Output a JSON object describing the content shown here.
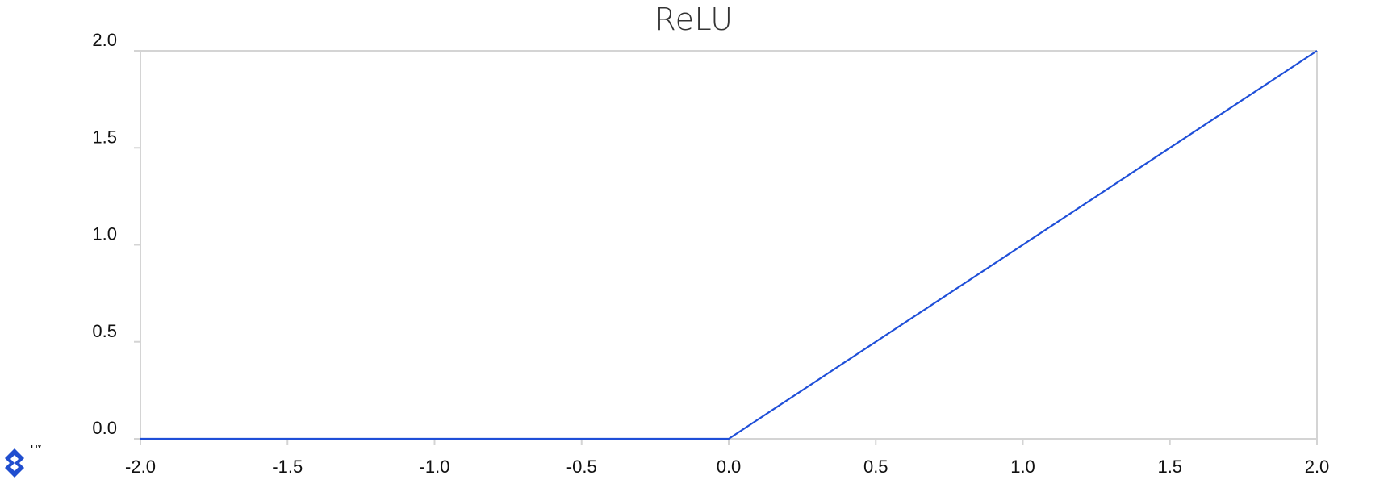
{
  "chart_data": {
    "type": "line",
    "title": "ReLU",
    "xlabel": "",
    "ylabel": "",
    "xlim": [
      -2.0,
      2.0
    ],
    "ylim": [
      0.0,
      2.0
    ],
    "x_ticks": [
      "-2.0",
      "-1.5",
      "-1.0",
      "-0.5",
      "0.0",
      "0.5",
      "1.0",
      "1.5",
      "2.0"
    ],
    "y_ticks": [
      "0.0",
      "0.5",
      "1.0",
      "1.5",
      "2.0"
    ],
    "series": [
      {
        "x": [
          -2.0,
          0.0,
          2.0
        ],
        "y": [
          0.0,
          0.0,
          2.0
        ],
        "color": "#1f4fd8"
      }
    ],
    "grid": false,
    "axis_color": "#d4d4d4"
  },
  "branding": {
    "logo_icon": "toptal-logo-icon",
    "logo_color": "#204ecf",
    "trademark": "™"
  }
}
